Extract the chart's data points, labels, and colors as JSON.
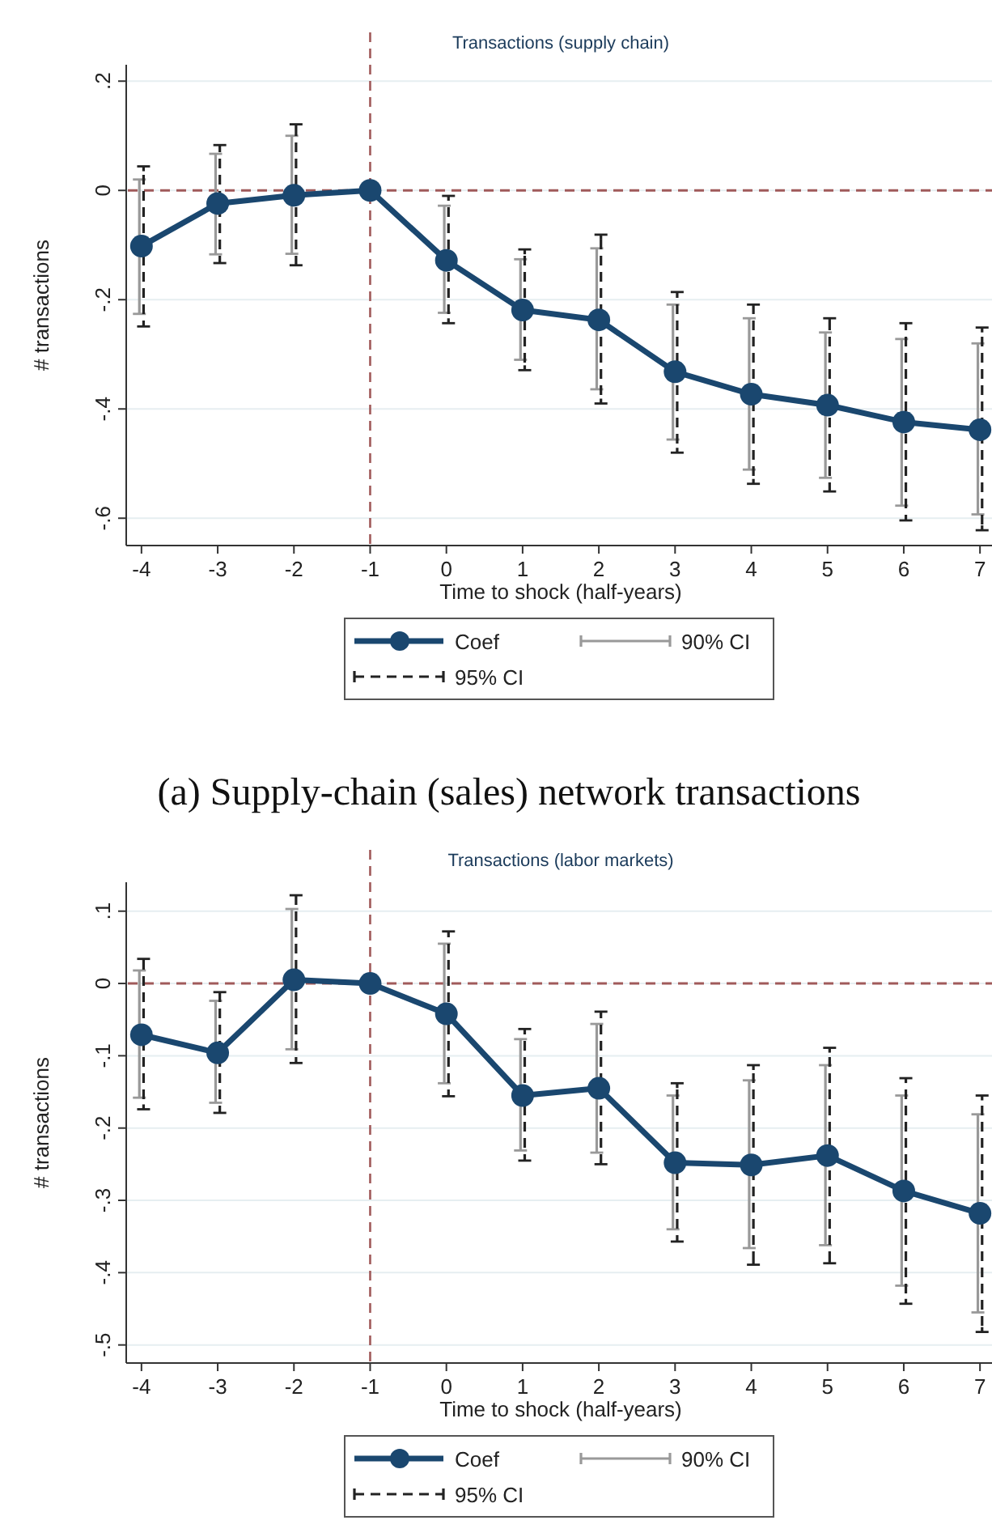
{
  "chart_data": [
    {
      "type": "line",
      "title": "Transactions (supply chain)",
      "xlabel": "Time to shock (half-years)",
      "ylabel": "# transactions",
      "x": [
        -4,
        -3,
        -2,
        -1,
        0,
        1,
        2,
        3,
        4,
        5,
        6,
        7
      ],
      "xlim": [
        -4.2,
        7.2
      ],
      "xticks": [
        -4,
        -3,
        -2,
        -1,
        0,
        1,
        2,
        3,
        4,
        5,
        6,
        7
      ],
      "ylim": [
        -0.65,
        0.23
      ],
      "yticks": [
        {
          "value": -0.6,
          "label": "-.6"
        },
        {
          "value": -0.4,
          "label": "-.4"
        },
        {
          "value": -0.2,
          "label": "-.2"
        },
        0,
        {
          "value": 0.2,
          "label": ".2"
        }
      ],
      "grid": "y",
      "legend": "bottom",
      "series": [
        {
          "name": "Coef",
          "marker": "circle",
          "line_style": "solid",
          "color": "#1a476f",
          "values": [
            -0.102,
            -0.024,
            -0.009,
            0,
            -0.128,
            -0.219,
            -0.237,
            -0.332,
            -0.373,
            -0.393,
            -0.424,
            -0.438
          ]
        },
        {
          "name": "90% CI",
          "type": "bar",
          "line_style": "solid",
          "color": "#999999",
          "base": [
            -0.226,
            -0.117,
            -0.116,
            null,
            -0.224,
            -0.31,
            -0.364,
            -0.456,
            -0.511,
            -0.526,
            -0.577,
            -0.593
          ],
          "values": [
            0.246,
            0.184,
            0.216,
            null,
            0.196,
            0.184,
            0.258,
            0.247,
            0.277,
            0.266,
            0.305,
            0.313
          ]
        },
        {
          "name": "95% CI",
          "type": "bar",
          "line_style": "dashed",
          "color": "#222222",
          "base": [
            -0.249,
            -0.133,
            -0.137,
            null,
            -0.243,
            -0.329,
            -0.39,
            -0.48,
            -0.537,
            -0.551,
            -0.604,
            -0.622
          ],
          "values": [
            0.293,
            0.216,
            0.258,
            null,
            0.233,
            0.221,
            0.309,
            0.294,
            0.328,
            0.317,
            0.361,
            0.371
          ]
        }
      ],
      "ref_lines": [
        {
          "axis": "y",
          "value": 0,
          "color": "#a05a5a",
          "line_style": "dashed"
        },
        {
          "axis": "x",
          "value": -1,
          "color": "#a05a5a",
          "line_style": "dashed"
        }
      ],
      "annotations": [
        "(a) Supply-chain (sales) network transactions"
      ]
    },
    {
      "type": "line",
      "title": "Transactions (labor markets)",
      "xlabel": "Time to shock (half-years)",
      "ylabel": "# transactions",
      "x": [
        -4,
        -3,
        -2,
        -1,
        0,
        1,
        2,
        3,
        4,
        5,
        6,
        7
      ],
      "xlim": [
        -4.2,
        7.2
      ],
      "xticks": [
        -4,
        -3,
        -2,
        -1,
        0,
        1,
        2,
        3,
        4,
        5,
        6,
        7
      ],
      "ylim": [
        -0.525,
        0.14
      ],
      "yticks": [
        {
          "value": -0.5,
          "label": "-.5"
        },
        {
          "value": -0.4,
          "label": "-.4"
        },
        {
          "value": -0.3,
          "label": "-.3"
        },
        {
          "value": -0.2,
          "label": "-.2"
        },
        {
          "value": -0.1,
          "label": "-.1"
        },
        0,
        {
          "value": 0.1,
          "label": ".1"
        }
      ],
      "grid": "y",
      "legend": "bottom",
      "series": [
        {
          "name": "Coef",
          "marker": "circle",
          "line_style": "solid",
          "color": "#1a476f",
          "values": [
            -0.071,
            -0.096,
            0.005,
            0,
            -0.042,
            -0.155,
            -0.145,
            -0.248,
            -0.251,
            -0.238,
            -0.287,
            -0.318
          ]
        },
        {
          "name": "90% CI",
          "type": "bar",
          "line_style": "solid",
          "color": "#999999",
          "base": [
            -0.158,
            -0.165,
            -0.091,
            null,
            -0.138,
            -0.231,
            -0.234,
            -0.34,
            -0.366,
            -0.362,
            -0.418,
            -0.455
          ],
          "values": [
            0.176,
            0.141,
            0.194,
            null,
            0.193,
            0.154,
            0.178,
            0.185,
            0.232,
            0.249,
            0.263,
            0.274
          ]
        },
        {
          "name": "95% CI",
          "type": "bar",
          "line_style": "dashed",
          "color": "#222222",
          "base": [
            -0.174,
            -0.179,
            -0.11,
            null,
            -0.156,
            -0.245,
            -0.25,
            -0.357,
            -0.389,
            -0.387,
            -0.443,
            -0.482
          ],
          "values": [
            0.208,
            0.167,
            0.232,
            null,
            0.228,
            0.182,
            0.211,
            0.219,
            0.276,
            0.298,
            0.312,
            0.327
          ]
        }
      ],
      "ref_lines": [
        {
          "axis": "y",
          "value": 0,
          "color": "#a05a5a",
          "line_style": "dashed"
        },
        {
          "axis": "x",
          "value": -1,
          "color": "#a05a5a",
          "line_style": "dashed"
        }
      ]
    }
  ]
}
